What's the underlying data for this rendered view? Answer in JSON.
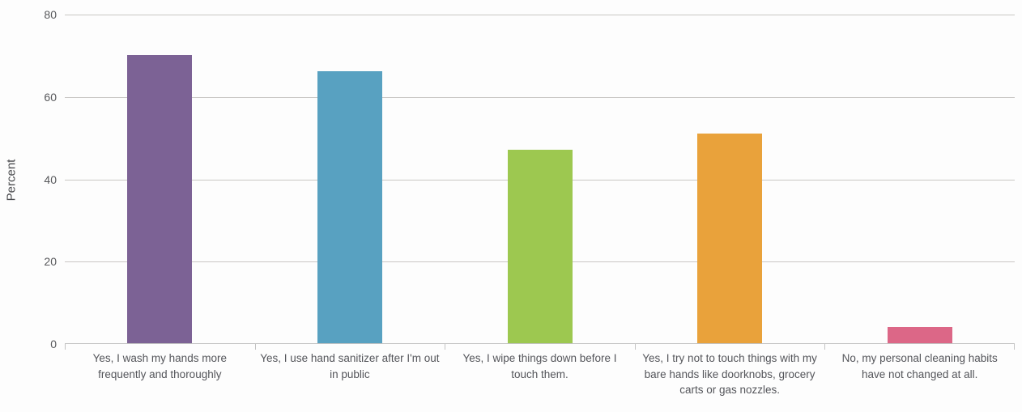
{
  "chart_data": {
    "type": "bar",
    "title": "",
    "xlabel": "",
    "ylabel": "Percent",
    "ylim": [
      0,
      80
    ],
    "yticks": [
      0,
      20,
      40,
      60,
      80
    ],
    "grid": true,
    "legend": false,
    "categories": [
      "Yes, I wash my hands more frequently and thoroughly",
      "Yes, I use hand sanitizer after I'm out in public",
      "Yes, I wipe things down before I touch them.",
      "Yes, I try not to touch things with my bare hands like doorknobs, grocery carts or gas nozzles.",
      "No, my personal cleaning habits have not changed at all."
    ],
    "values": [
      70,
      66,
      47,
      51,
      4
    ],
    "bar_colors": [
      "#7c6295",
      "#58a1c1",
      "#9dc850",
      "#e9a23b",
      "#dc6787"
    ]
  },
  "colors": {
    "grid": "#c9c7c4",
    "axis": "#c3c3c3",
    "tick_label": "#58595c",
    "category_label": "#54555a",
    "background": "#fdfdfd"
  }
}
